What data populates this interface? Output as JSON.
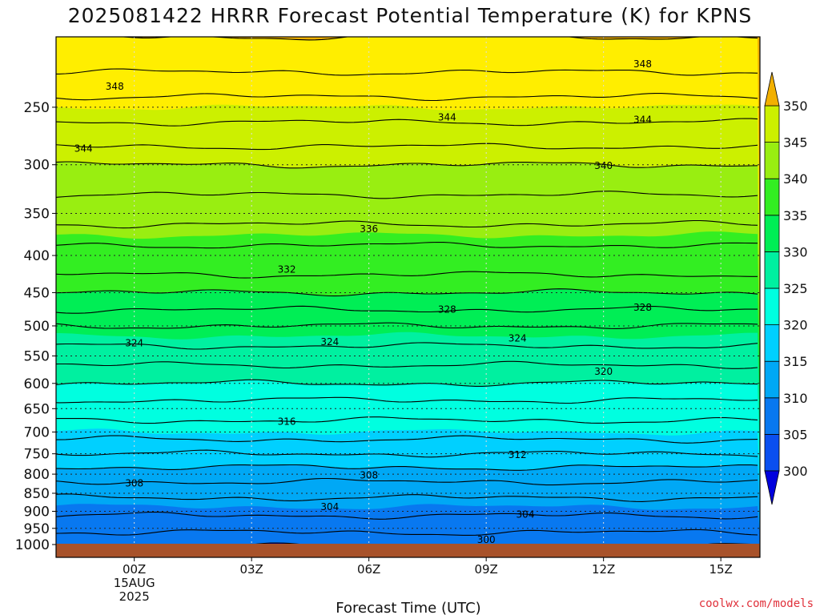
{
  "title": "2025081422 HRRR Forecast Potential Temperature (K) for KPNS",
  "credit": "coolwx.com/models",
  "chart_data": {
    "type": "heatmap",
    "title": "2025081422 HRRR Forecast Potential Temperature (K) for KPNS",
    "xlabel": "Forecast Time (UTC)",
    "ylabel": "",
    "x_range_hours_from_15AUG_00Z": [
      -2,
      16
    ],
    "x_ticks": [
      {
        "hour": 0,
        "label": "00Z",
        "sub": [
          "15AUG",
          "2025"
        ]
      },
      {
        "hour": 3,
        "label": "03Z",
        "sub": []
      },
      {
        "hour": 6,
        "label": "06Z",
        "sub": []
      },
      {
        "hour": 9,
        "label": "09Z",
        "sub": []
      },
      {
        "hour": 12,
        "label": "12Z",
        "sub": []
      },
      {
        "hour": 15,
        "label": "15Z",
        "sub": []
      }
    ],
    "y_axis": "pressure (hPa), log scale, inverted",
    "y_range_hpa": [
      1000,
      200
    ],
    "y_ticks": [
      250,
      300,
      350,
      400,
      450,
      500,
      550,
      600,
      650,
      700,
      750,
      800,
      850,
      900,
      950,
      1000
    ],
    "colorbar": {
      "levels": [
        300,
        305,
        310,
        315,
        320,
        325,
        330,
        335,
        340,
        345,
        350
      ],
      "colors": [
        "#0000dd",
        "#0a4ff0",
        "#0878f0",
        "#00a8f5",
        "#00d0ff",
        "#00ffe0",
        "#00f0a0",
        "#00ee55",
        "#33ee22",
        "#99ee11",
        "#ccf000",
        "#ffee00",
        "#f2b000"
      ]
    },
    "contour_levels": [
      300,
      302,
      304,
      306,
      308,
      310,
      312,
      314,
      316,
      318,
      320,
      322,
      324,
      326,
      328,
      330,
      332,
      334,
      336,
      338,
      340,
      342,
      344,
      346,
      348,
      350
    ],
    "contour_labels": [
      {
        "value": 348,
        "hour": -0.5,
        "p": 234
      },
      {
        "value": 348,
        "hour": 13.0,
        "p": 218
      },
      {
        "value": 344,
        "hour": -1.3,
        "p": 285
      },
      {
        "value": 344,
        "hour": 8.0,
        "p": 258
      },
      {
        "value": 344,
        "hour": 13.0,
        "p": 260
      },
      {
        "value": 340,
        "hour": 12.0,
        "p": 301
      },
      {
        "value": 336,
        "hour": 6.0,
        "p": 368
      },
      {
        "value": 332,
        "hour": 3.9,
        "p": 418
      },
      {
        "value": 328,
        "hour": 8.0,
        "p": 475
      },
      {
        "value": 328,
        "hour": 13.0,
        "p": 472
      },
      {
        "value": 324,
        "hour": 0.0,
        "p": 528
      },
      {
        "value": 324,
        "hour": 5.0,
        "p": 526
      },
      {
        "value": 324,
        "hour": 9.8,
        "p": 520
      },
      {
        "value": 320,
        "hour": 12.0,
        "p": 578
      },
      {
        "value": 316,
        "hour": 3.9,
        "p": 677
      },
      {
        "value": 312,
        "hour": 9.8,
        "p": 753
      },
      {
        "value": 308,
        "hour": 0.0,
        "p": 824
      },
      {
        "value": 308,
        "hour": 6.0,
        "p": 803
      },
      {
        "value": 304,
        "hour": 5.0,
        "p": 888
      },
      {
        "value": 304,
        "hour": 10.0,
        "p": 909
      },
      {
        "value": 300,
        "hour": 9.0,
        "p": 985
      }
    ],
    "profile": [
      {
        "p": 200,
        "theta": 350
      },
      {
        "p": 230,
        "theta": 347.5
      },
      {
        "p": 250,
        "theta": 345
      },
      {
        "p": 275,
        "theta": 343
      },
      {
        "p": 300,
        "theta": 340
      },
      {
        "p": 330,
        "theta": 338
      },
      {
        "p": 350,
        "theta": 337
      },
      {
        "p": 375,
        "theta": 335
      },
      {
        "p": 400,
        "theta": 333
      },
      {
        "p": 425,
        "theta": 332
      },
      {
        "p": 450,
        "theta": 330
      },
      {
        "p": 475,
        "theta": 328
      },
      {
        "p": 500,
        "theta": 326
      },
      {
        "p": 550,
        "theta": 323
      },
      {
        "p": 600,
        "theta": 320
      },
      {
        "p": 650,
        "theta": 317
      },
      {
        "p": 700,
        "theta": 315
      },
      {
        "p": 750,
        "theta": 312
      },
      {
        "p": 800,
        "theta": 309
      },
      {
        "p": 850,
        "theta": 306.5
      },
      {
        "p": 900,
        "theta": 304.5
      },
      {
        "p": 950,
        "theta": 302.5
      },
      {
        "p": 1000,
        "theta": 300.5
      }
    ]
  }
}
